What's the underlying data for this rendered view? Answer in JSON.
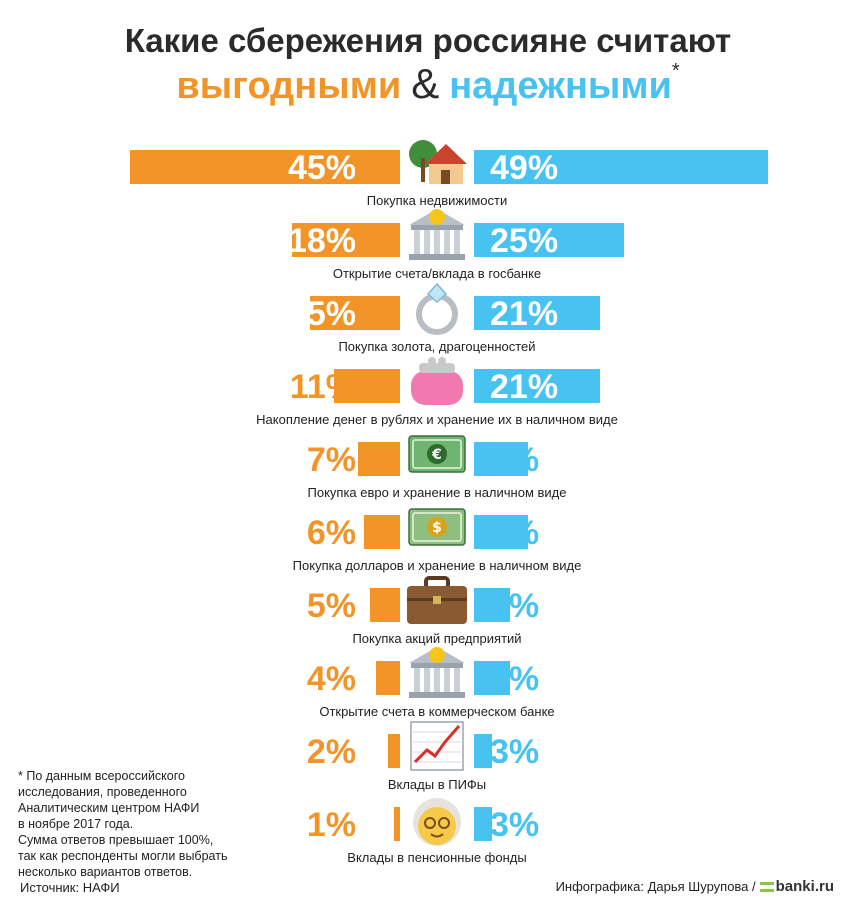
{
  "title": {
    "line1": "Какие сбережения россияне считают",
    "profitable": "выгодными",
    "amp": "&",
    "reliable": "надежными",
    "star": "*"
  },
  "colors": {
    "profitable": "#f39429",
    "reliable": "#48c3f1",
    "text": "#222222"
  },
  "chart_data": {
    "type": "bar",
    "series": [
      {
        "name": "выгодными",
        "values": [
          45,
          18,
          15,
          11,
          7,
          6,
          5,
          4,
          2,
          1
        ]
      },
      {
        "name": "надежными",
        "values": [
          49,
          25,
          21,
          21,
          9,
          9,
          6,
          6,
          3,
          3
        ]
      }
    ],
    "categories": [
      "Покупка недвижимости",
      "Открытие счета/вклада в госбанке",
      "Покупка золота, драгоценностей",
      "Накопление денег в рублях и хранение их в наличном виде",
      "Покупка евро и хранение в наличном виде",
      "Покупка долларов и хранение в наличном виде",
      "Покупка акций предприятий",
      "Открытие счета в коммерческом банке",
      "Вклады в ПИФы",
      "Вклады в пенсионные фонды"
    ],
    "icons": [
      "house-icon",
      "bank-icon",
      "ring-icon",
      "purse-icon",
      "euro-banknotes-icon",
      "dollar-banknotes-icon",
      "briefcase-icon",
      "bank-icon",
      "chart-increasing-icon",
      "older-woman-icon"
    ],
    "value_suffix": "%",
    "layout": "butterfly"
  },
  "footnote": {
    "lines": [
      "* По данным всероссийского",
      "исследования, проведенного",
      "Аналитическим центром НАФИ",
      "в ноябре 2017 года.",
      "Сумма ответов превышает 100%,",
      "так как респонденты могли выбрать",
      "несколько вариантов ответов."
    ]
  },
  "source": "Источник: НАФИ",
  "credit": {
    "text": "Инфографика: Дарья Шурупова /",
    "brand": "banki.ru"
  }
}
